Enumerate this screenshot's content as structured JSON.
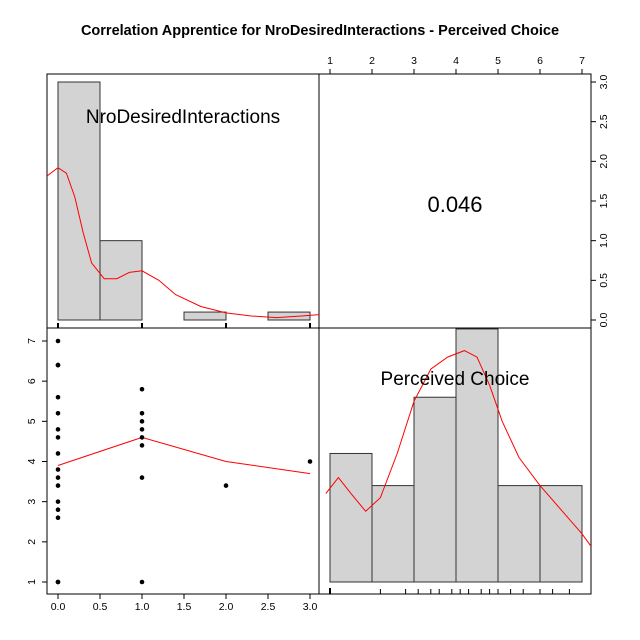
{
  "chart_data": {
    "title": "Correlation Apprentice for NroDesiredInteractions - Perceived Choice",
    "type": "scatter-matrix",
    "grid": false,
    "variables": [
      "NroDesiredInteractions",
      "Perceived Choice"
    ],
    "correlation": "0.046",
    "histogram_nro": {
      "type": "bar",
      "bins": [
        [
          0,
          0.5
        ],
        [
          0.5,
          1
        ],
        [
          1,
          1.5
        ],
        [
          1.5,
          2
        ],
        [
          2,
          2.5
        ],
        [
          2.5,
          3
        ]
      ],
      "values": [
        3.0,
        1.0,
        0,
        0.1,
        0,
        0.1
      ],
      "density_curve": [
        [
          -0.15,
          1.8
        ],
        [
          0,
          1.92
        ],
        [
          0.1,
          1.85
        ],
        [
          0.2,
          1.55
        ],
        [
          0.3,
          1.1
        ],
        [
          0.4,
          0.72
        ],
        [
          0.55,
          0.52
        ],
        [
          0.7,
          0.52
        ],
        [
          0.85,
          0.6
        ],
        [
          1.0,
          0.62
        ],
        [
          1.2,
          0.5
        ],
        [
          1.4,
          0.32
        ],
        [
          1.7,
          0.17
        ],
        [
          2.0,
          0.09
        ],
        [
          2.3,
          0.05
        ],
        [
          2.6,
          0.03
        ],
        [
          2.9,
          0.05
        ],
        [
          3.15,
          0.07
        ]
      ],
      "ylim": [
        0,
        3.0
      ],
      "yticks": [
        "0.0",
        "0.5",
        "1.0",
        "1.5",
        "2.0",
        "2.5",
        "3.0"
      ]
    },
    "histogram_choice": {
      "type": "bar",
      "bins": [
        [
          1,
          2
        ],
        [
          2,
          3
        ],
        [
          3,
          4
        ],
        [
          4,
          5
        ],
        [
          5,
          6
        ],
        [
          6,
          7
        ]
      ],
      "values": [
        1.6,
        1.2,
        2.3,
        3.15,
        1.2,
        1.2
      ],
      "density_curve": [
        [
          0.9,
          1.1
        ],
        [
          1.2,
          1.3
        ],
        [
          1.5,
          1.1
        ],
        [
          1.85,
          0.88
        ],
        [
          2.2,
          1.05
        ],
        [
          2.6,
          1.6
        ],
        [
          3.0,
          2.25
        ],
        [
          3.4,
          2.65
        ],
        [
          3.8,
          2.8
        ],
        [
          4.2,
          2.88
        ],
        [
          4.5,
          2.8
        ],
        [
          4.8,
          2.45
        ],
        [
          5.1,
          2.0
        ],
        [
          5.5,
          1.55
        ],
        [
          6.0,
          1.2
        ],
        [
          6.5,
          0.9
        ],
        [
          7.0,
          0.6
        ],
        [
          7.25,
          0.42
        ]
      ],
      "rug": [
        2.2,
        2.8,
        3.1,
        3.4,
        3.6,
        3.9,
        4.1,
        4.3,
        4.6,
        4.8,
        5.0,
        5.3,
        5.6,
        6.0,
        6.3,
        6.7
      ],
      "xticks": [
        "1",
        "2",
        "3",
        "4",
        "5",
        "6",
        "7"
      ]
    },
    "scatter": {
      "xlabel": "",
      "ylabel": "",
      "xlim": [
        -0.1,
        3.1
      ],
      "ylim": [
        0.8,
        7.2
      ],
      "xticks": [
        "0.0",
        "0.5",
        "1.0",
        "1.5",
        "2.0",
        "2.5",
        "3.0"
      ],
      "yticks": [
        "1",
        "2",
        "3",
        "4",
        "5",
        "6",
        "7"
      ],
      "points": [
        [
          0,
          7
        ],
        [
          0,
          6.4
        ],
        [
          0,
          6.4
        ],
        [
          0,
          5.6
        ],
        [
          0,
          5.2
        ],
        [
          0,
          4.8
        ],
        [
          0,
          4.6
        ],
        [
          0,
          4.2
        ],
        [
          0,
          3.8
        ],
        [
          0,
          3.6
        ],
        [
          0,
          3.4
        ],
        [
          0,
          3.0
        ],
        [
          0,
          2.8
        ],
        [
          0,
          2.6
        ],
        [
          0,
          1.0
        ],
        [
          0,
          1.0
        ],
        [
          1,
          5.8
        ],
        [
          1,
          5.2
        ],
        [
          1,
          5.0
        ],
        [
          1,
          4.8
        ],
        [
          1,
          4.6
        ],
        [
          1,
          4.4
        ],
        [
          1,
          3.6
        ],
        [
          1,
          1.0
        ],
        [
          2,
          3.4
        ],
        [
          3,
          4.0
        ]
      ],
      "smooth_line": [
        [
          0,
          3.9
        ],
        [
          1,
          4.6
        ],
        [
          2,
          4.0
        ],
        [
          3,
          3.7
        ]
      ]
    }
  }
}
